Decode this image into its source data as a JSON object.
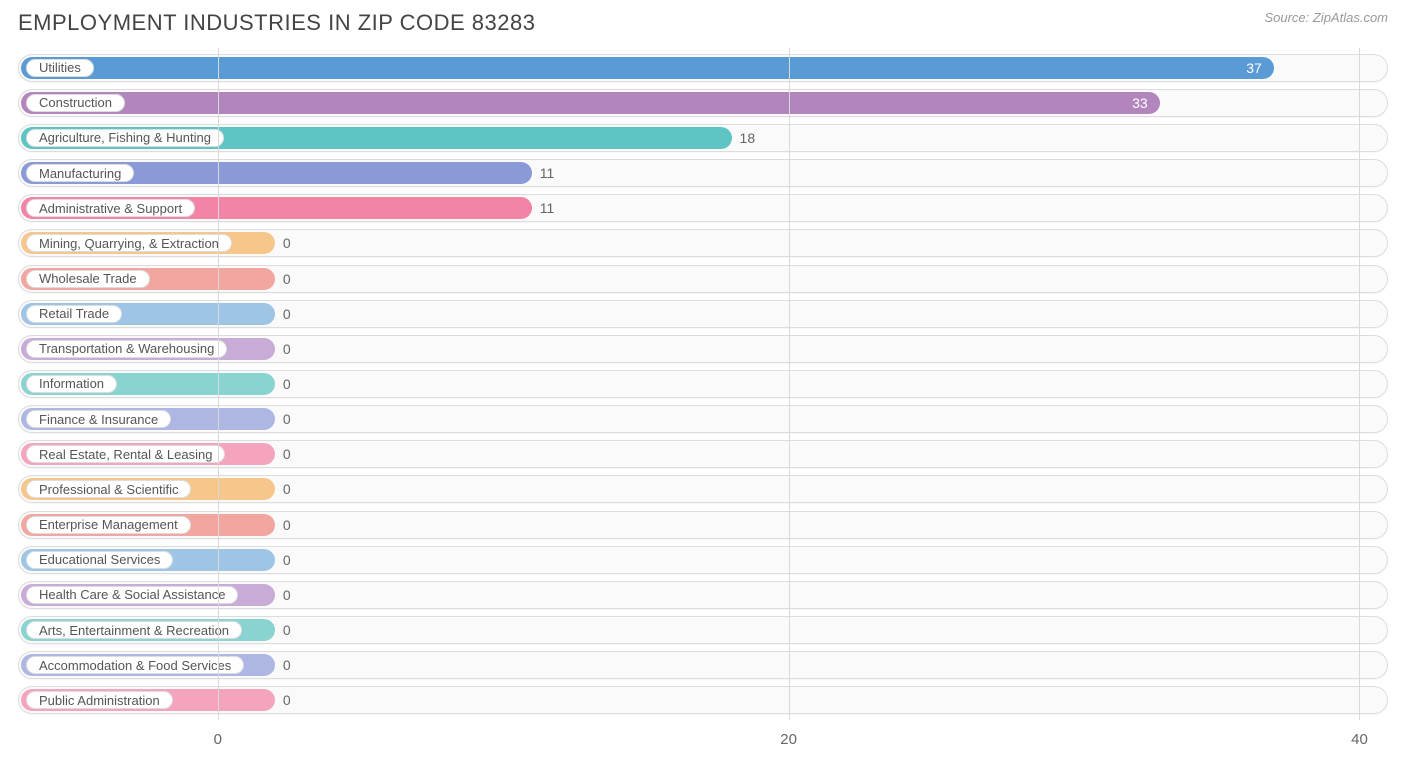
{
  "title": "EMPLOYMENT INDUSTRIES IN ZIP CODE 83283",
  "source": "Source: ZipAtlas.com",
  "chart": {
    "type": "bar-horizontal",
    "xmin": -7,
    "xmax": 41,
    "xticks": [
      0,
      20,
      40
    ],
    "grid_color": "#d9d9d9",
    "track_border": "#dcdcdc",
    "track_bg": "#fafafa",
    "background_color": "#ffffff",
    "label_fontsize": 13,
    "value_fontsize": 14,
    "title_fontsize": 22,
    "title_color": "#444444",
    "axis_label_color": "#666666",
    "zero_bar_reach": 2,
    "rows": [
      {
        "label": "Utilities",
        "value": 37,
        "color": "#5a9bd5",
        "value_inside": true
      },
      {
        "label": "Construction",
        "value": 33,
        "color": "#b286bd",
        "value_inside": true
      },
      {
        "label": "Agriculture, Fishing & Hunting",
        "value": 18,
        "color": "#5ec4c4",
        "value_inside": false
      },
      {
        "label": "Manufacturing",
        "value": 11,
        "color": "#8a9ad6",
        "value_inside": false
      },
      {
        "label": "Administrative & Support",
        "value": 11,
        "color": "#f285a6",
        "value_inside": false
      },
      {
        "label": "Mining, Quarrying, & Extraction",
        "value": 0,
        "color": "#f6c68a",
        "value_inside": false
      },
      {
        "label": "Wholesale Trade",
        "value": 0,
        "color": "#f2a6a0",
        "value_inside": false
      },
      {
        "label": "Retail Trade",
        "value": 0,
        "color": "#9ec4e6",
        "value_inside": false
      },
      {
        "label": "Transportation & Warehousing",
        "value": 0,
        "color": "#c8abd6",
        "value_inside": false
      },
      {
        "label": "Information",
        "value": 0,
        "color": "#89d4d0",
        "value_inside": false
      },
      {
        "label": "Finance & Insurance",
        "value": 0,
        "color": "#aeb7e3",
        "value_inside": false
      },
      {
        "label": "Real Estate, Rental & Leasing",
        "value": 0,
        "color": "#f4a5bd",
        "value_inside": false
      },
      {
        "label": "Professional & Scientific",
        "value": 0,
        "color": "#f6c68a",
        "value_inside": false
      },
      {
        "label": "Enterprise Management",
        "value": 0,
        "color": "#f2a6a0",
        "value_inside": false
      },
      {
        "label": "Educational Services",
        "value": 0,
        "color": "#9ec4e6",
        "value_inside": false
      },
      {
        "label": "Health Care & Social Assistance",
        "value": 0,
        "color": "#c8abd6",
        "value_inside": false
      },
      {
        "label": "Arts, Entertainment & Recreation",
        "value": 0,
        "color": "#89d4d0",
        "value_inside": false
      },
      {
        "label": "Accommodation & Food Services",
        "value": 0,
        "color": "#aeb7e3",
        "value_inside": false
      },
      {
        "label": "Public Administration",
        "value": 0,
        "color": "#f4a5bd",
        "value_inside": false
      }
    ]
  }
}
